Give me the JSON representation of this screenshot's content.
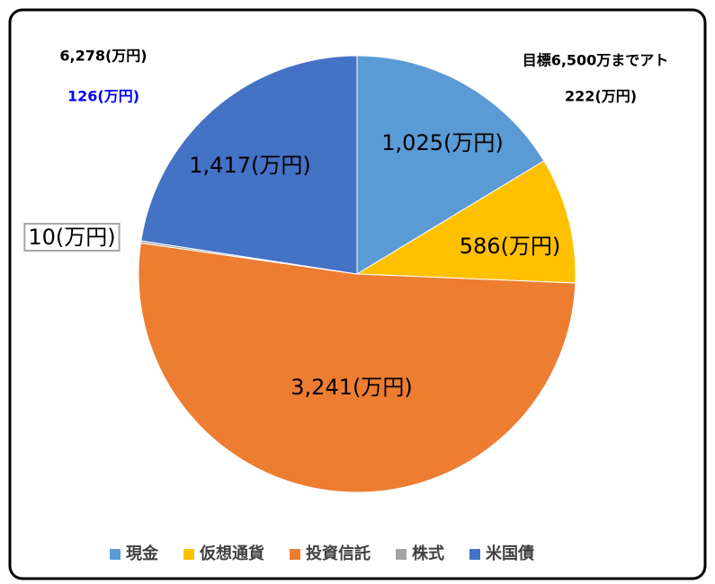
{
  "chart_data": {
    "type": "pie",
    "categories": [
      "現金",
      "仮想通貨",
      "投資信託",
      "株式",
      "米国債"
    ],
    "values": [
      1025,
      586,
      3241,
      10,
      1417
    ],
    "value_labels": [
      "1,025(万円)",
      "586(万円)",
      "3,241(万円)",
      "10(万円)",
      "1,417(万円)"
    ],
    "colors": [
      "#5b9bd5",
      "#ffc000",
      "#ed7d31",
      "#a5a5a5",
      "#4472c4"
    ],
    "legend": "bottom",
    "annotations": [
      {
        "text": "6,278(万円)",
        "color": "#000000"
      },
      {
        "text": "126(万円)",
        "color": "#0000ff"
      },
      {
        "text": "目標6,500万までアト",
        "color": "#000000"
      },
      {
        "text": "222(万円)",
        "color": "#000000"
      }
    ]
  }
}
